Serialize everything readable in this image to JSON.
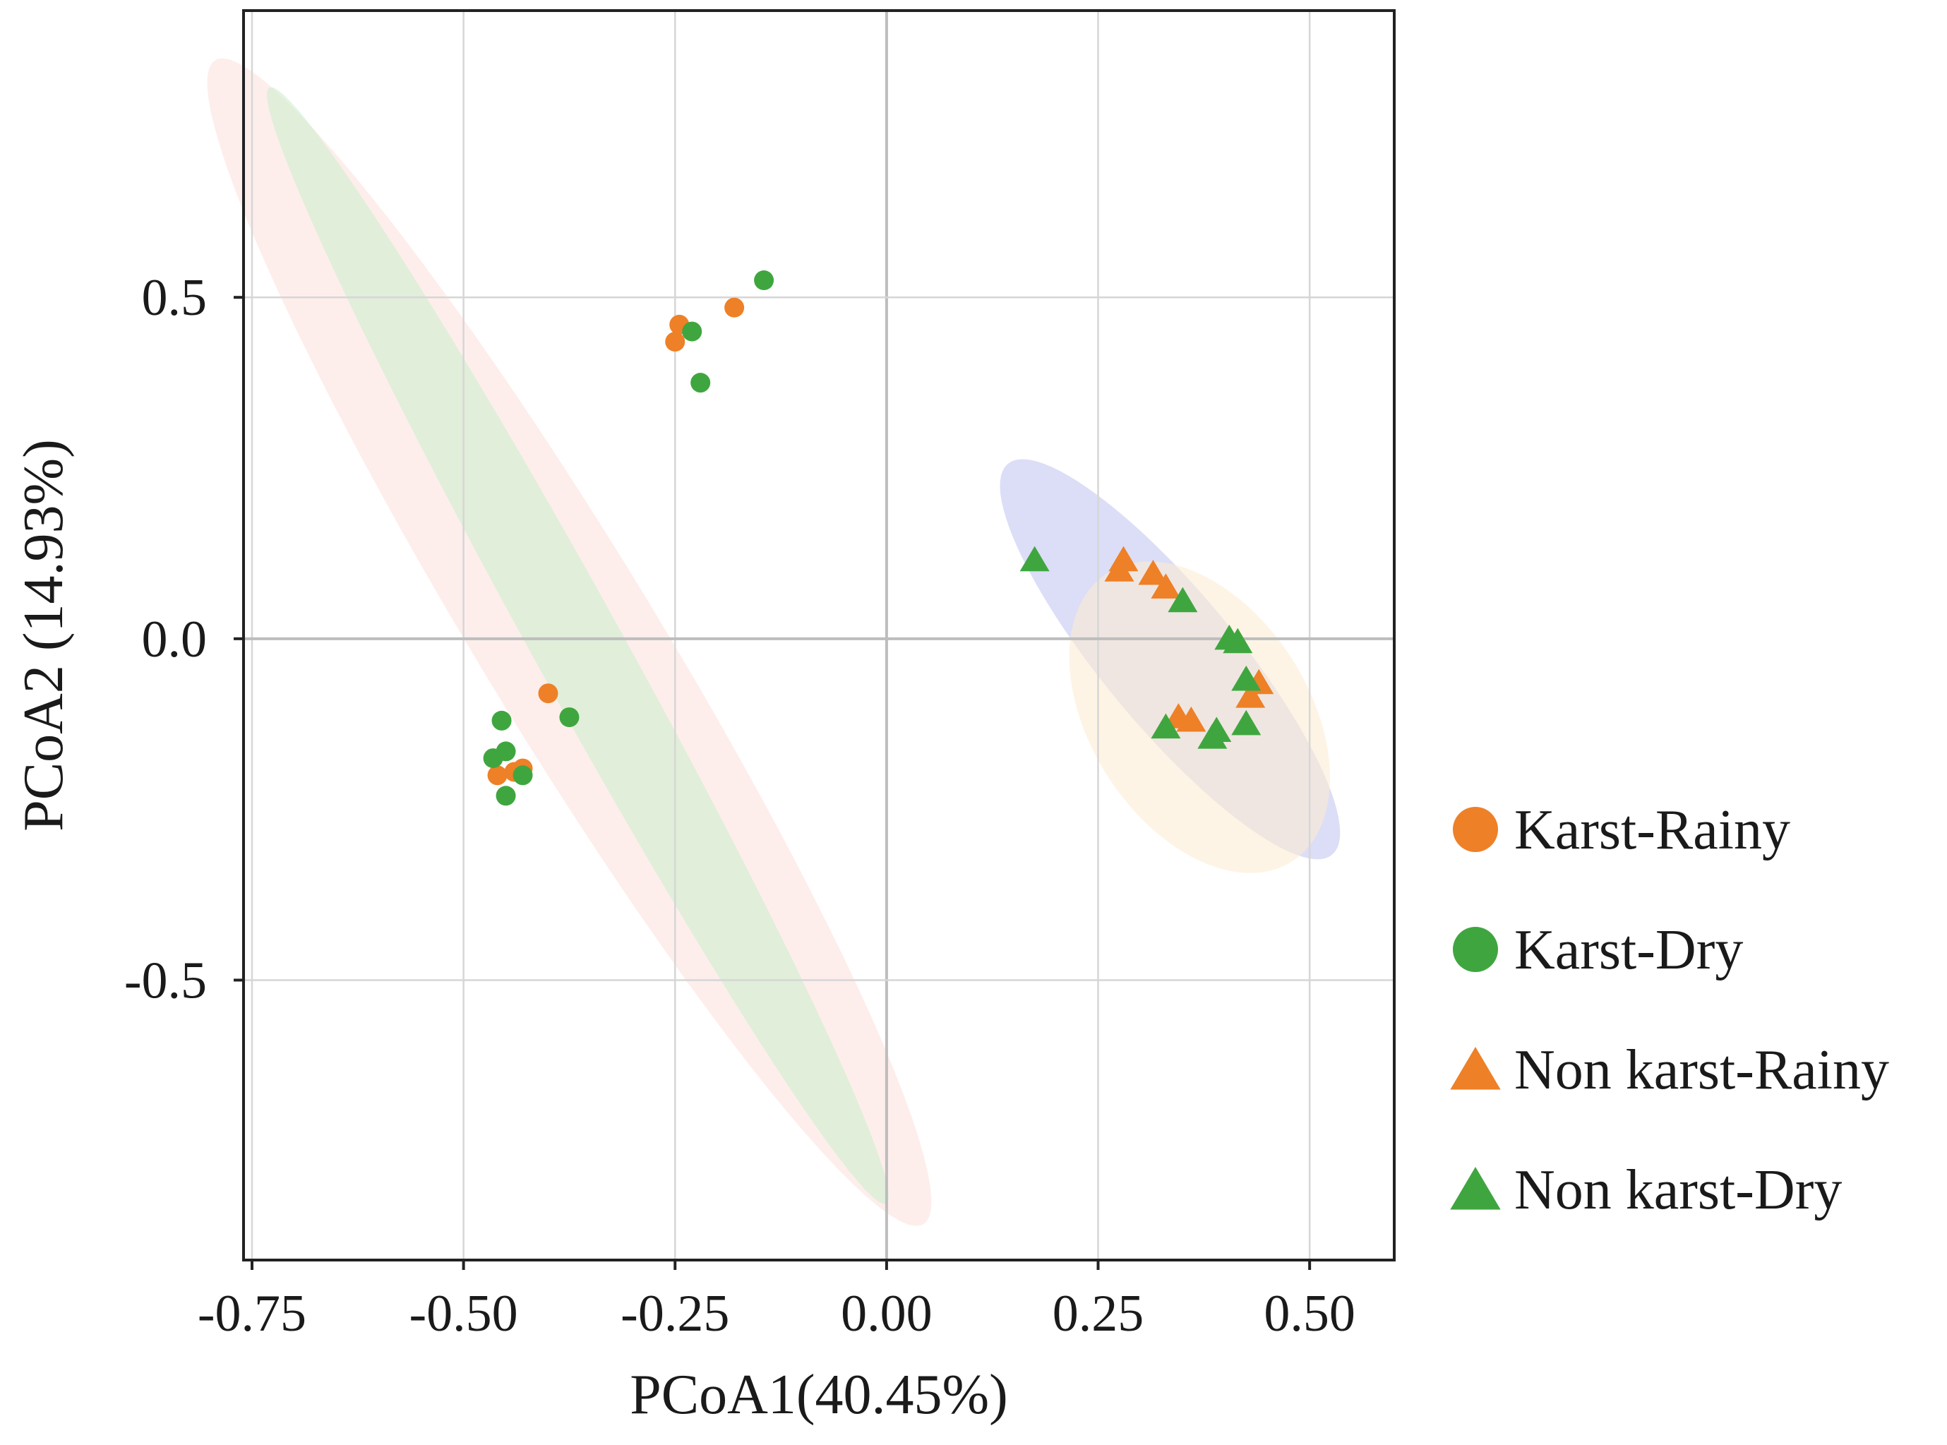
{
  "chart_data": {
    "type": "scatter",
    "xlabel": "PCoA1(40.45%)",
    "ylabel": "PCoA2 (14.93%)",
    "xlim": [
      -0.76,
      0.6
    ],
    "ylim": [
      -0.91,
      0.92
    ],
    "x_ticks": [
      -0.75,
      -0.5,
      -0.25,
      0.0,
      0.25,
      0.5
    ],
    "x_tick_labels": [
      "-0.75",
      "-0.50",
      "-0.25",
      "0.00",
      "0.25",
      "0.50"
    ],
    "y_ticks": [
      -0.5,
      0.0,
      0.5
    ],
    "y_tick_labels": [
      "-0.5",
      "0.0",
      "0.5"
    ],
    "grid": true,
    "legend_position": "right",
    "series": [
      {
        "name": "Karst-Rainy",
        "marker": "circle",
        "color": "#ee8027",
        "points": [
          [
            -0.18,
            0.485
          ],
          [
            -0.245,
            0.46
          ],
          [
            -0.25,
            0.435
          ],
          [
            -0.4,
            -0.08
          ],
          [
            -0.46,
            -0.2
          ],
          [
            -0.43,
            -0.19
          ],
          [
            -0.44,
            -0.195
          ]
        ]
      },
      {
        "name": "Karst-Dry",
        "marker": "circle",
        "color": "#3fa63f",
        "points": [
          [
            -0.145,
            0.525
          ],
          [
            -0.23,
            0.45
          ],
          [
            -0.22,
            0.375
          ],
          [
            -0.375,
            -0.115
          ],
          [
            -0.455,
            -0.12
          ],
          [
            -0.465,
            -0.175
          ],
          [
            -0.45,
            -0.165
          ],
          [
            -0.43,
            -0.2
          ],
          [
            -0.45,
            -0.23
          ]
        ]
      },
      {
        "name": "Non karst-Rainy",
        "marker": "triangle",
        "color": "#ee8027",
        "points": [
          [
            0.28,
            0.115
          ],
          [
            0.275,
            0.1
          ],
          [
            0.315,
            0.095
          ],
          [
            0.33,
            0.075
          ],
          [
            0.345,
            -0.115
          ],
          [
            0.36,
            -0.12
          ],
          [
            0.44,
            -0.065
          ],
          [
            0.43,
            -0.085
          ]
        ]
      },
      {
        "name": "Non karst-Dry",
        "marker": "triangle",
        "color": "#3fa63f",
        "points": [
          [
            0.175,
            0.115
          ],
          [
            0.35,
            0.055
          ],
          [
            0.405,
            0.0
          ],
          [
            0.415,
            -0.005
          ],
          [
            0.425,
            -0.06
          ],
          [
            0.425,
            -0.125
          ],
          [
            0.33,
            -0.13
          ],
          [
            0.385,
            -0.145
          ],
          [
            0.39,
            -0.135
          ]
        ]
      }
    ],
    "ellipses": [
      {
        "group": "Karst-Rainy",
        "color": "#fbe3df",
        "center": [
          -0.375,
          -0.005
        ],
        "half_axes": [
          0.11,
          0.95
        ],
        "angle_deg": 26
      },
      {
        "group": "Karst-Dry",
        "color": "#cfeecf",
        "center": [
          -0.365,
          -0.01
        ],
        "half_axes": [
          0.055,
          0.895
        ],
        "angle_deg": 24
      },
      {
        "group": "Non karst-Dry",
        "color": "#c4c7f0",
        "center": [
          0.335,
          -0.03
        ],
        "half_axes": [
          0.085,
          0.345
        ],
        "angle_deg": 33
      },
      {
        "group": "Non karst-Rainy",
        "color": "#fbecd3",
        "center": [
          0.37,
          -0.115
        ],
        "half_axes": [
          0.135,
          0.24
        ],
        "angle_deg": 22
      }
    ]
  }
}
